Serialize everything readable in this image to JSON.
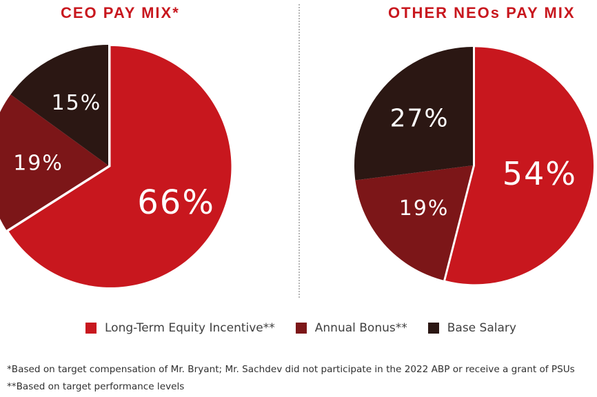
{
  "colors": {
    "long_term": "#c8171e",
    "annual_bonus": "#7c1618",
    "base_salary": "#2b1713",
    "title": "#c8171e",
    "label": "#ffffff"
  },
  "chart_data": [
    {
      "type": "pie",
      "title": "CEO PAY MIX*",
      "categories": [
        "Long-Term Equity Incentive**",
        "Annual Bonus**",
        "Base Salary"
      ],
      "values": [
        66,
        19,
        15
      ],
      "labels": [
        "66%",
        "19%",
        "15%"
      ],
      "colors": [
        "#c8171e",
        "#7c1618",
        "#2b1713"
      ],
      "start_angle_deg": 90,
      "direction": "clockwise",
      "exploded_slice": 0
    },
    {
      "type": "pie",
      "title": "OTHER NEOs PAY MIX",
      "categories": [
        "Long-Term Equity Incentive**",
        "Annual Bonus**",
        "Base Salary"
      ],
      "values": [
        54,
        19,
        27
      ],
      "labels": [
        "54%",
        "19%",
        "27%"
      ],
      "colors": [
        "#c8171e",
        "#7c1618",
        "#2b1713"
      ],
      "start_angle_deg": 90,
      "direction": "clockwise",
      "exploded_slice": 0
    }
  ],
  "legend": {
    "items": [
      {
        "label": "Long-Term Equity Incentive**",
        "color": "#c8171e"
      },
      {
        "label": "Annual Bonus**",
        "color": "#7c1618"
      },
      {
        "label": "Base Salary",
        "color": "#2b1713"
      }
    ]
  },
  "footnotes": [
    "*Based on target compensation of Mr. Bryant; Mr. Sachdev did not participate in the 2022 ABP or receive a grant of PSUs",
    "**Based on target performance levels"
  ]
}
